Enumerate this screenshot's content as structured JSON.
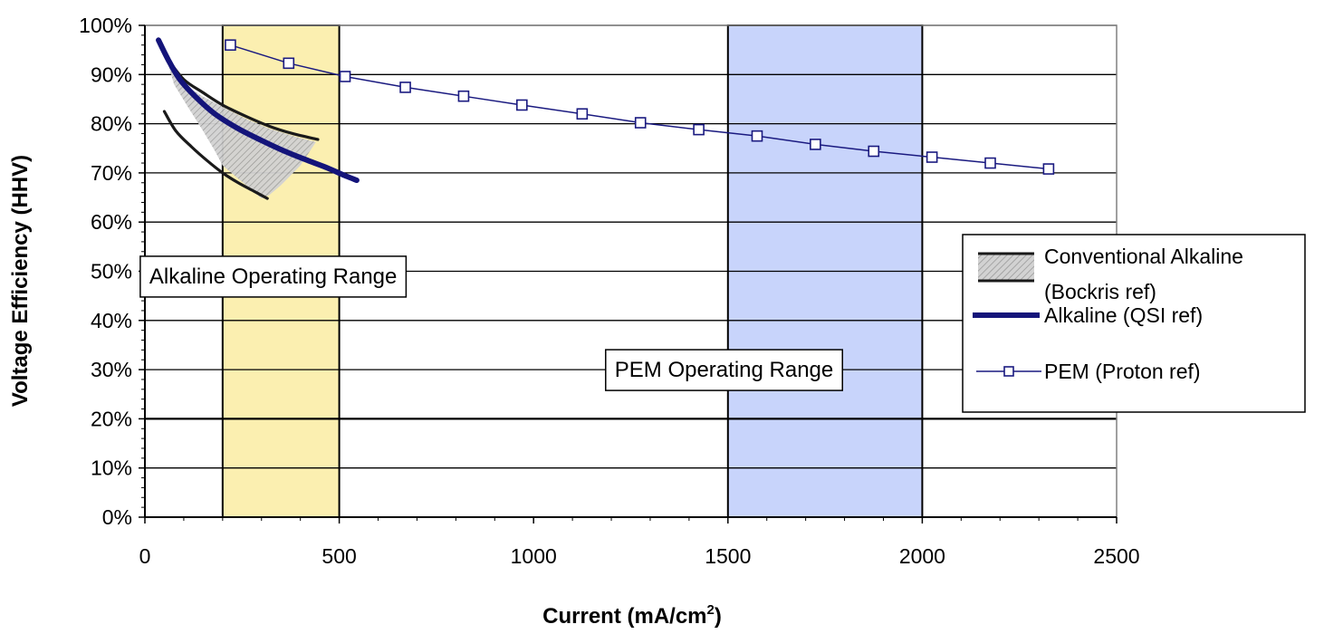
{
  "chart_data": {
    "type": "line",
    "xlabel": "Current (mA/cm",
    "xlabel_sup": "2",
    "xlabel_close": ")",
    "ylabel": "Voltage Efficiency (HHV)",
    "xlim": [
      0,
      2500
    ],
    "ylim": [
      0,
      100
    ],
    "x_ticks": [
      0,
      500,
      1000,
      1500,
      2000,
      2500
    ],
    "x_tick_labels": [
      "0",
      "500",
      "1000",
      "1500",
      "2000",
      "2500"
    ],
    "y_ticks": [
      0,
      10,
      20,
      30,
      40,
      50,
      60,
      70,
      80,
      90,
      100
    ],
    "y_tick_labels": [
      "0%",
      "10%",
      "20%",
      "30%",
      "40%",
      "50%",
      "60%",
      "70%",
      "80%",
      "90%",
      "100%"
    ],
    "grid": "horizontal",
    "colors": {
      "alkaline_band": "#fbefb0",
      "pem_band": "#c8d4fb",
      "pem_line": "#1a1a80",
      "qsi_line": "#14147a",
      "bockris_line": "#1a1a1a",
      "bockris_fill": "#c9c9c9"
    },
    "bands": [
      {
        "name": "alkaline-range",
        "x_start": 200,
        "x_end": 500,
        "label": "Alkaline Operating Range",
        "label_x": 330,
        "label_y": 49
      },
      {
        "name": "pem-range",
        "x_start": 1500,
        "x_end": 2000,
        "label": "PEM Operating Range",
        "label_x": 1490,
        "label_y": 30
      }
    ],
    "series": [
      {
        "name": "PEM (Proton ref)",
        "style": "line-square",
        "x": [
          220,
          370,
          515,
          670,
          820,
          970,
          1125,
          1275,
          1425,
          1575,
          1725,
          1875,
          2025,
          2175,
          2325
        ],
        "y": [
          96,
          92.3,
          89.6,
          87.4,
          85.6,
          83.8,
          82,
          80.2,
          78.8,
          77.5,
          75.8,
          74.4,
          73.2,
          72,
          70.8
        ]
      },
      {
        "name": "Alkaline (QSI ref)",
        "style": "thick-line",
        "x": [
          35,
          60,
          90,
          130,
          180,
          240,
          300,
          360,
          420,
          470,
          510,
          545
        ],
        "y": [
          97,
          93,
          89,
          85.5,
          82,
          79,
          76.6,
          74.4,
          72.5,
          71,
          69.6,
          68.5
        ]
      },
      {
        "name": "Conventional Alkaline",
        "name_line2": "(Bockris ref)",
        "style": "band",
        "upper": {
          "x": [
            60,
            100,
            150,
            200,
            260,
            320,
            380,
            445
          ],
          "y": [
            93,
            89,
            86.3,
            83.8,
            81.5,
            79.5,
            78,
            76.8
          ]
        },
        "lower": {
          "x": [
            50,
            80,
            120,
            160,
            200,
            240,
            280,
            315
          ],
          "y": [
            82.5,
            78.5,
            75.3,
            72.5,
            70,
            68,
            66.3,
            64.8
          ]
        },
        "fill_polygon": {
          "x": [
            60,
            100,
            150,
            210,
            260,
            320,
            390,
            440,
            400,
            350,
            320,
            300,
            265,
            230,
            200,
            180,
            150,
            110,
            75
          ],
          "y": [
            92,
            88,
            85.5,
            83,
            81,
            79,
            77.3,
            76.3,
            71.5,
            67.5,
            65.5,
            64.8,
            67.2,
            69.5,
            71.5,
            74.5,
            78.5,
            83.5,
            88
          ]
        }
      }
    ]
  }
}
